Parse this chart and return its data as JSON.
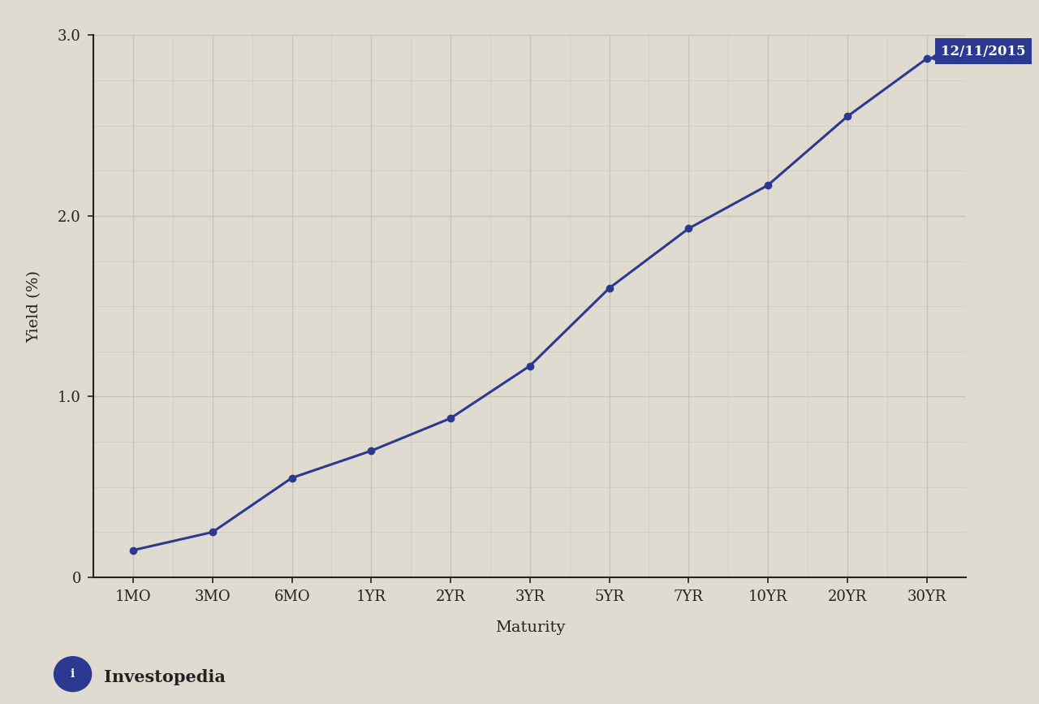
{
  "x_labels": [
    "1MO",
    "3MO",
    "6MO",
    "1YR",
    "2YR",
    "3YR",
    "5YR",
    "7YR",
    "10YR",
    "20YR",
    "30YR"
  ],
  "yields": [
    0.15,
    0.25,
    0.55,
    0.7,
    0.88,
    1.17,
    1.6,
    1.93,
    2.17,
    2.55,
    2.87
  ],
  "line_color": "#2b3990",
  "marker_color": "#2b3990",
  "background_color": "#e0dbd0",
  "plot_bg_color": "#dedad0",
  "grid_color": "#c5c0b2",
  "axis_color": "#222222",
  "label_box_color": "#2b3990",
  "label_text": "12/11/2015",
  "label_text_color": "#ffffff",
  "ylabel": "Yield (%)",
  "xlabel": "Maturity",
  "ylim": [
    0,
    3.0
  ],
  "yticks": [
    0,
    1.0,
    2.0,
    3.0
  ],
  "ytick_labels": [
    "0",
    "1.0",
    "2.0",
    "3.0"
  ],
  "axis_fontsize": 14,
  "tick_fontsize": 13,
  "line_width": 2.2,
  "marker_size": 6,
  "investopedia_text": "Investopedia",
  "investopedia_color": "#222222",
  "investopedia_logo_color": "#2b3990"
}
